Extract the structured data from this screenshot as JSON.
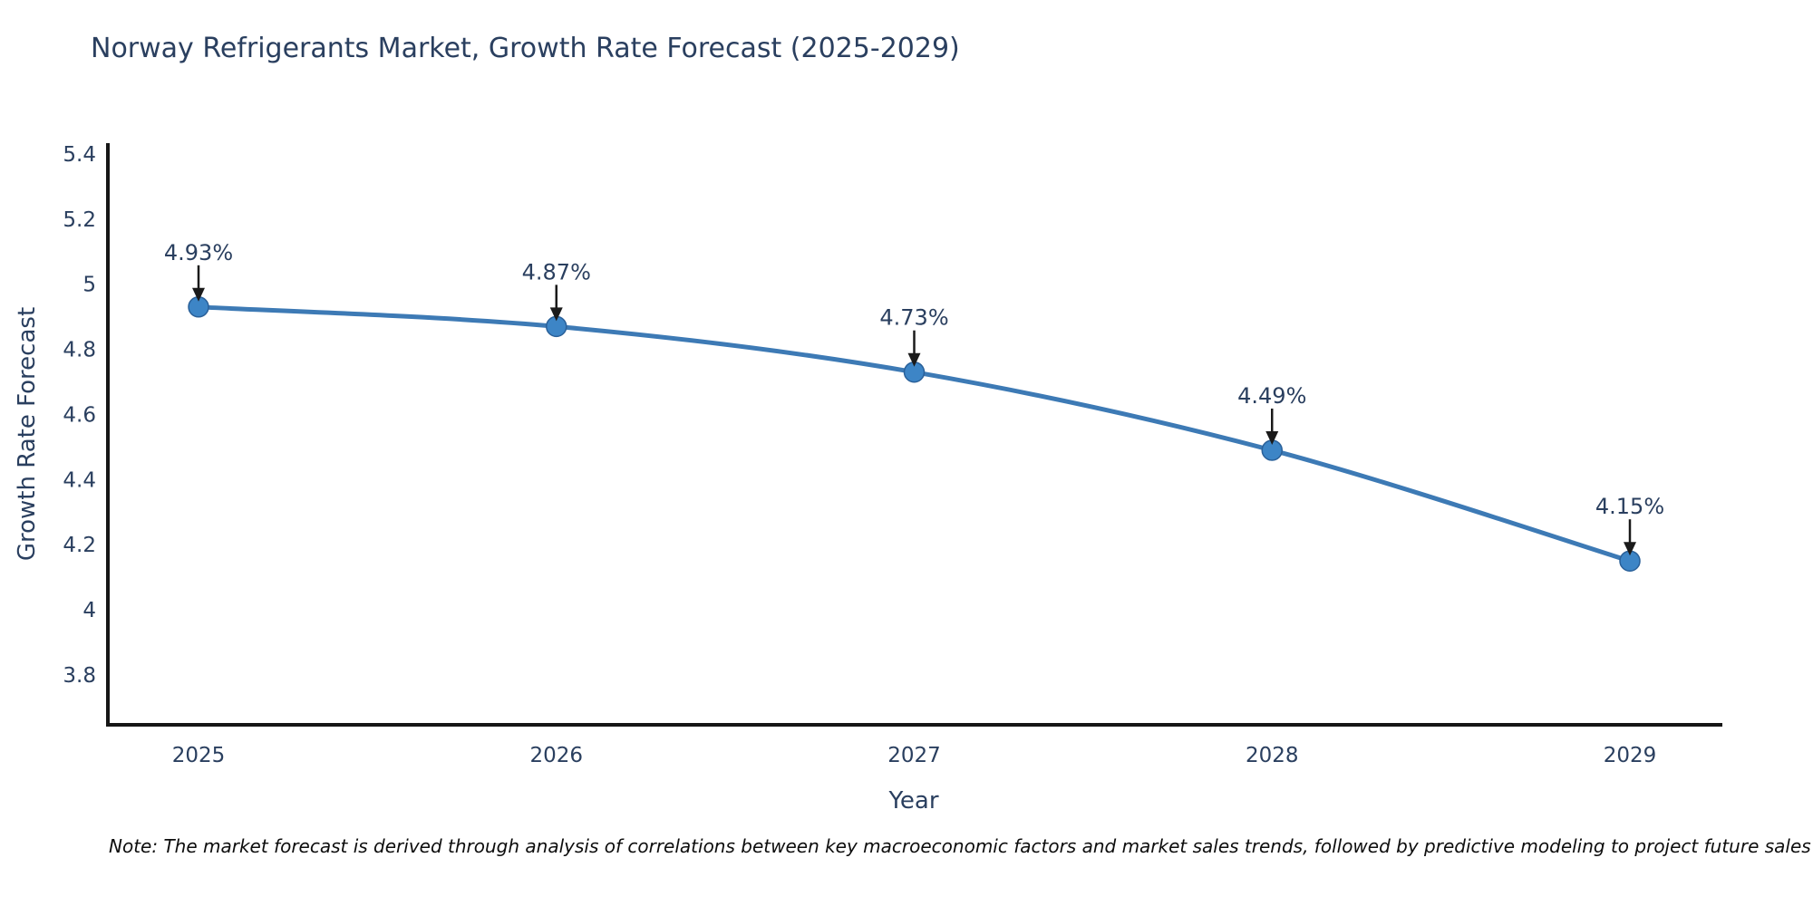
{
  "chart": {
    "title": "Norway Refrigerants Market, Growth Rate Forecast (2025-2029)",
    "xlabel": "Year",
    "ylabel": "Growth Rate Forecast",
    "note": "Note: The market forecast is derived through analysis of correlations between key macroeconomic factors and market sales trends, followed by predictive modeling to project future sales"
  },
  "chart_data": {
    "type": "line",
    "title": "Norway Refrigerants Market, Growth Rate Forecast (2025-2029)",
    "xlabel": "Year",
    "ylabel": "Growth Rate Forecast",
    "categories": [
      "2025",
      "2026",
      "2027",
      "2028",
      "2029"
    ],
    "series": [
      {
        "name": "Growth Rate Forecast",
        "values": [
          4.93,
          4.87,
          4.73,
          4.49,
          4.15
        ]
      }
    ],
    "point_labels": [
      "4.93%",
      "4.87%",
      "4.73%",
      "4.49%",
      "4.15%"
    ],
    "yticks": [
      5.4,
      5.2,
      5,
      4.8,
      4.6,
      4.4,
      4.2,
      4,
      3.8
    ],
    "ylim": [
      3.647,
      5.433
    ],
    "grid": false,
    "legend_position": "none",
    "line_color": "#3d7ab5",
    "marker_color": "#3d85c6",
    "marker_edge_color": "#2a6099",
    "axis_color": "#161616",
    "text_color": "#2a3f5f",
    "annotation_arrow_color": "#1a1a1a"
  }
}
